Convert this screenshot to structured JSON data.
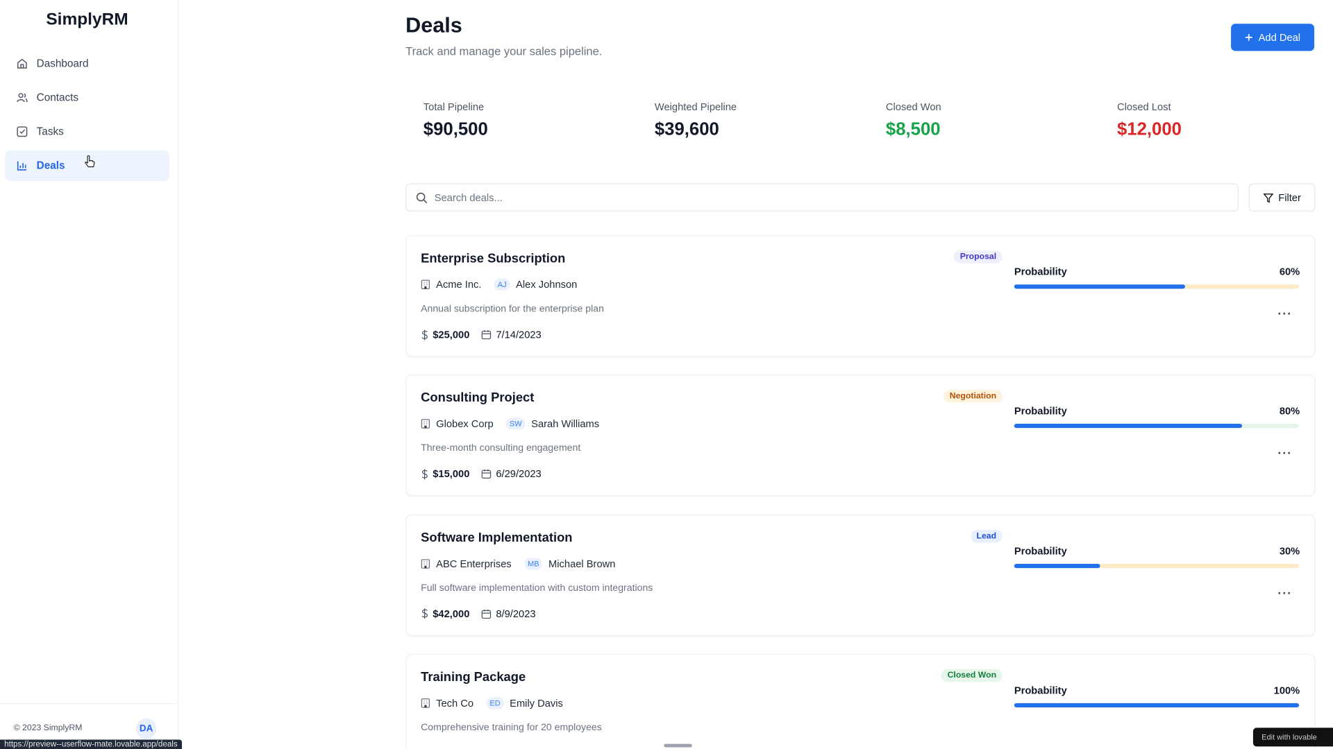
{
  "sidebar": {
    "brand": "SimplyRM",
    "nav": [
      "Dashboard",
      "Contacts",
      "Tasks",
      "Deals"
    ],
    "footer": "© 2023 SimplyRM",
    "avatar": "DA"
  },
  "header": {
    "title": "Deals",
    "subtitle": "Track and manage your sales pipeline.",
    "add_button": "Add Deal"
  },
  "stats": [
    {
      "label": "Total Pipeline",
      "value": "$90,500"
    },
    {
      "label": "Weighted Pipeline",
      "value": "$39,600"
    },
    {
      "label": "Closed Won",
      "value": "$8,500"
    },
    {
      "label": "Closed Lost",
      "value": "$12,000"
    }
  ],
  "search": {
    "placeholder": "Search deals...",
    "filter": "Filter"
  },
  "deals": [
    {
      "title": "Enterprise Subscription",
      "status": "Proposal",
      "company": "Acme Inc.",
      "initials": "AJ",
      "contact": "Alex Johnson",
      "description": "Annual subscription for the enterprise plan",
      "amount": "$25,000",
      "date": "7/14/2023",
      "probability_label": "Probability",
      "probability": {
        "value": 60,
        "label": "60%"
      }
    },
    {
      "title": "Consulting Project",
      "status": "Negotiation",
      "company": "Globex Corp",
      "initials": "SW",
      "contact": "Sarah Williams",
      "description": "Three-month consulting engagement",
      "amount": "$15,000",
      "date": "6/29/2023",
      "probability_label": "Probability",
      "probability": {
        "value": 80,
        "label": "80%"
      }
    },
    {
      "title": "Software Implementation",
      "status": "Lead",
      "company": "ABC Enterprises",
      "initials": "MB",
      "contact": "Michael Brown",
      "description": "Full software implementation with custom integrations",
      "amount": "$42,000",
      "date": "8/9/2023",
      "probability_label": "Probability",
      "probability": {
        "value": 30,
        "label": "30%"
      }
    },
    {
      "title": "Training Package",
      "status": "Closed Won",
      "company": "Tech Co",
      "initials": "ED",
      "contact": "Emily Davis",
      "description": "Comprehensive training for 20 employees",
      "probability_label": "Probability",
      "probability": {
        "value": 100,
        "label": "100%"
      }
    }
  ],
  "status_url": "https://preview--userflow-mate.lovable.app/deals",
  "edit_badge": "Edit with lovable"
}
